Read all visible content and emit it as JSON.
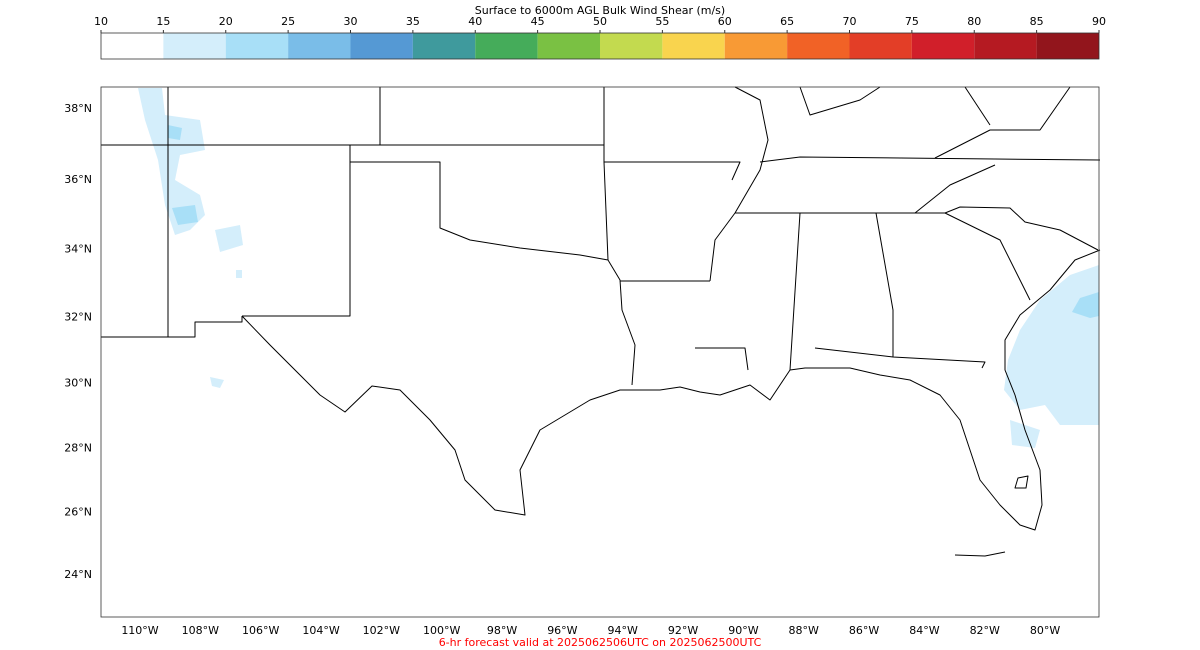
{
  "colorbar": {
    "title": "Surface to 6000m AGL Bulk Wind Shear (m/s)",
    "ticks": [
      10,
      15,
      20,
      25,
      30,
      35,
      40,
      45,
      50,
      55,
      60,
      65,
      70,
      75,
      80,
      85,
      90
    ],
    "colors": [
      "#ffffff",
      "#d4eefb",
      "#a8dff7",
      "#7abde8",
      "#5599d4",
      "#3f9a9d",
      "#45ac5a",
      "#7ac143",
      "#c3da4f",
      "#f9d44e",
      "#f89a35",
      "#f16226",
      "#e33e27",
      "#d11f2a",
      "#b51a22",
      "#92151c"
    ]
  },
  "map": {
    "lat_labels": [
      {
        "value": 38,
        "label": "38°N"
      },
      {
        "value": 36,
        "label": "36°N"
      },
      {
        "value": 34,
        "label": "34°N"
      },
      {
        "value": 32,
        "label": "32°N"
      },
      {
        "value": 30,
        "label": "30°N"
      },
      {
        "value": 28,
        "label": "28°N"
      },
      {
        "value": 26,
        "label": "26°N"
      },
      {
        "value": 24,
        "label": "24°N"
      }
    ],
    "lon_labels": [
      {
        "value": -110,
        "label": "110°W"
      },
      {
        "value": -108,
        "label": "108°W"
      },
      {
        "value": -106,
        "label": "106°W"
      },
      {
        "value": -104,
        "label": "104°W"
      },
      {
        "value": -102,
        "label": "102°W"
      },
      {
        "value": -100,
        "label": "100°W"
      },
      {
        "value": -98,
        "label": "98°W"
      },
      {
        "value": -96,
        "label": "96°W"
      },
      {
        "value": -94,
        "label": "94°W"
      },
      {
        "value": -92,
        "label": "92°W"
      },
      {
        "value": -90,
        "label": "90°W"
      },
      {
        "value": -88,
        "label": "88°W"
      },
      {
        "value": -86,
        "label": "86°W"
      },
      {
        "value": -84,
        "label": "84°W"
      },
      {
        "value": -82,
        "label": "82°W"
      },
      {
        "value": -80,
        "label": "80°W"
      }
    ]
  },
  "footer": "6-hr forecast valid at 2025062506UTC on 2025062500UTC"
}
